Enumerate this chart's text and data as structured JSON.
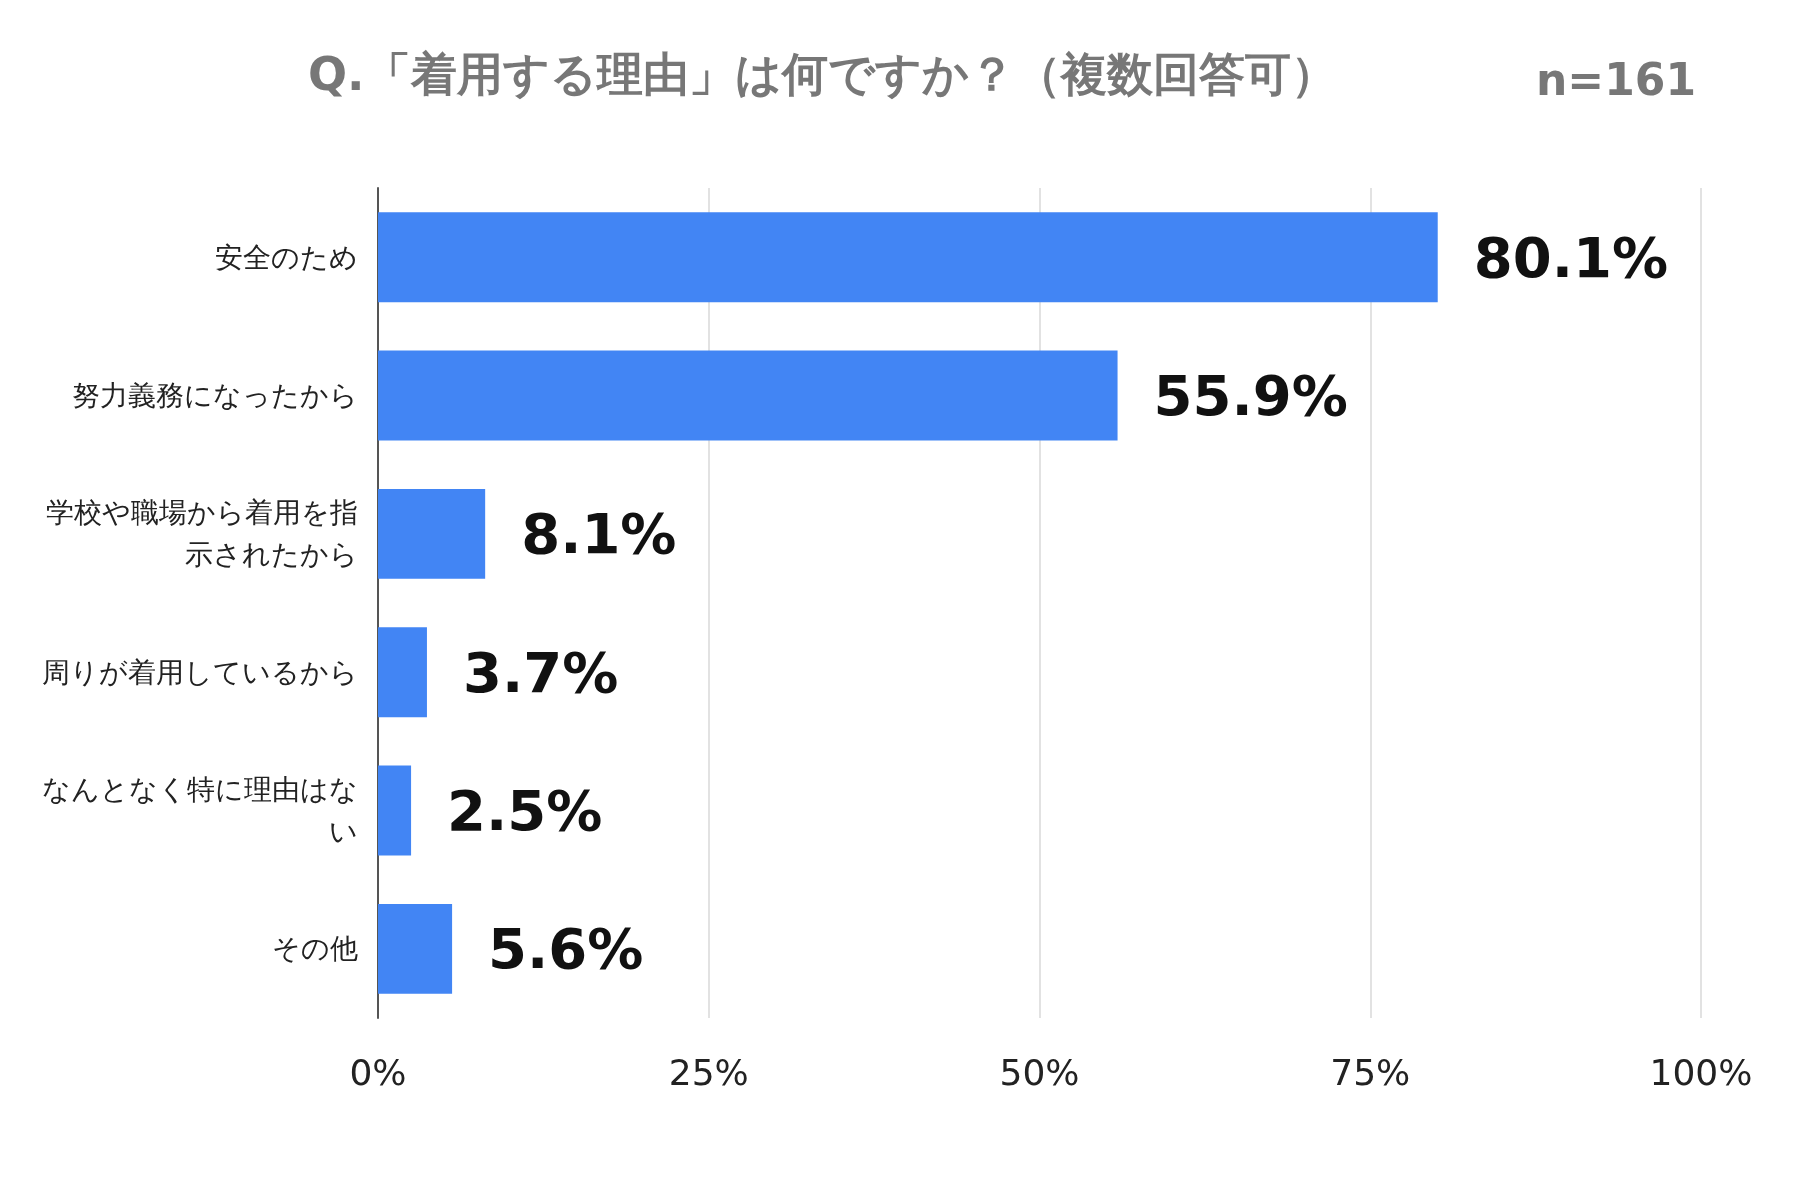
{
  "chart_data": {
    "type": "bar",
    "orientation": "horizontal",
    "title": "Q.「着用する理由」は何ですか？（複数回答可）",
    "subtitle": "n=161",
    "categories": [
      "安全のため",
      "努力義務になったから",
      "学校や職場から着用を指示されたから",
      "周りが着用しているから",
      "なんとなく特に理由はない",
      "その他"
    ],
    "values": [
      80.1,
      55.9,
      8.1,
      3.7,
      2.5,
      5.6
    ],
    "value_labels": [
      "80.1%",
      "55.9%",
      "8.1%",
      "3.7%",
      "2.5%",
      "5.6%"
    ],
    "color": "#4285f4",
    "xlim": [
      0,
      100
    ],
    "xticks": [
      {
        "value": 0,
        "label": "0%"
      },
      {
        "value": 25,
        "label": "25%"
      },
      {
        "value": 50,
        "label": "50%"
      },
      {
        "value": 75,
        "label": "75%"
      },
      {
        "value": 100,
        "label": "100%"
      }
    ],
    "grid": "x"
  }
}
